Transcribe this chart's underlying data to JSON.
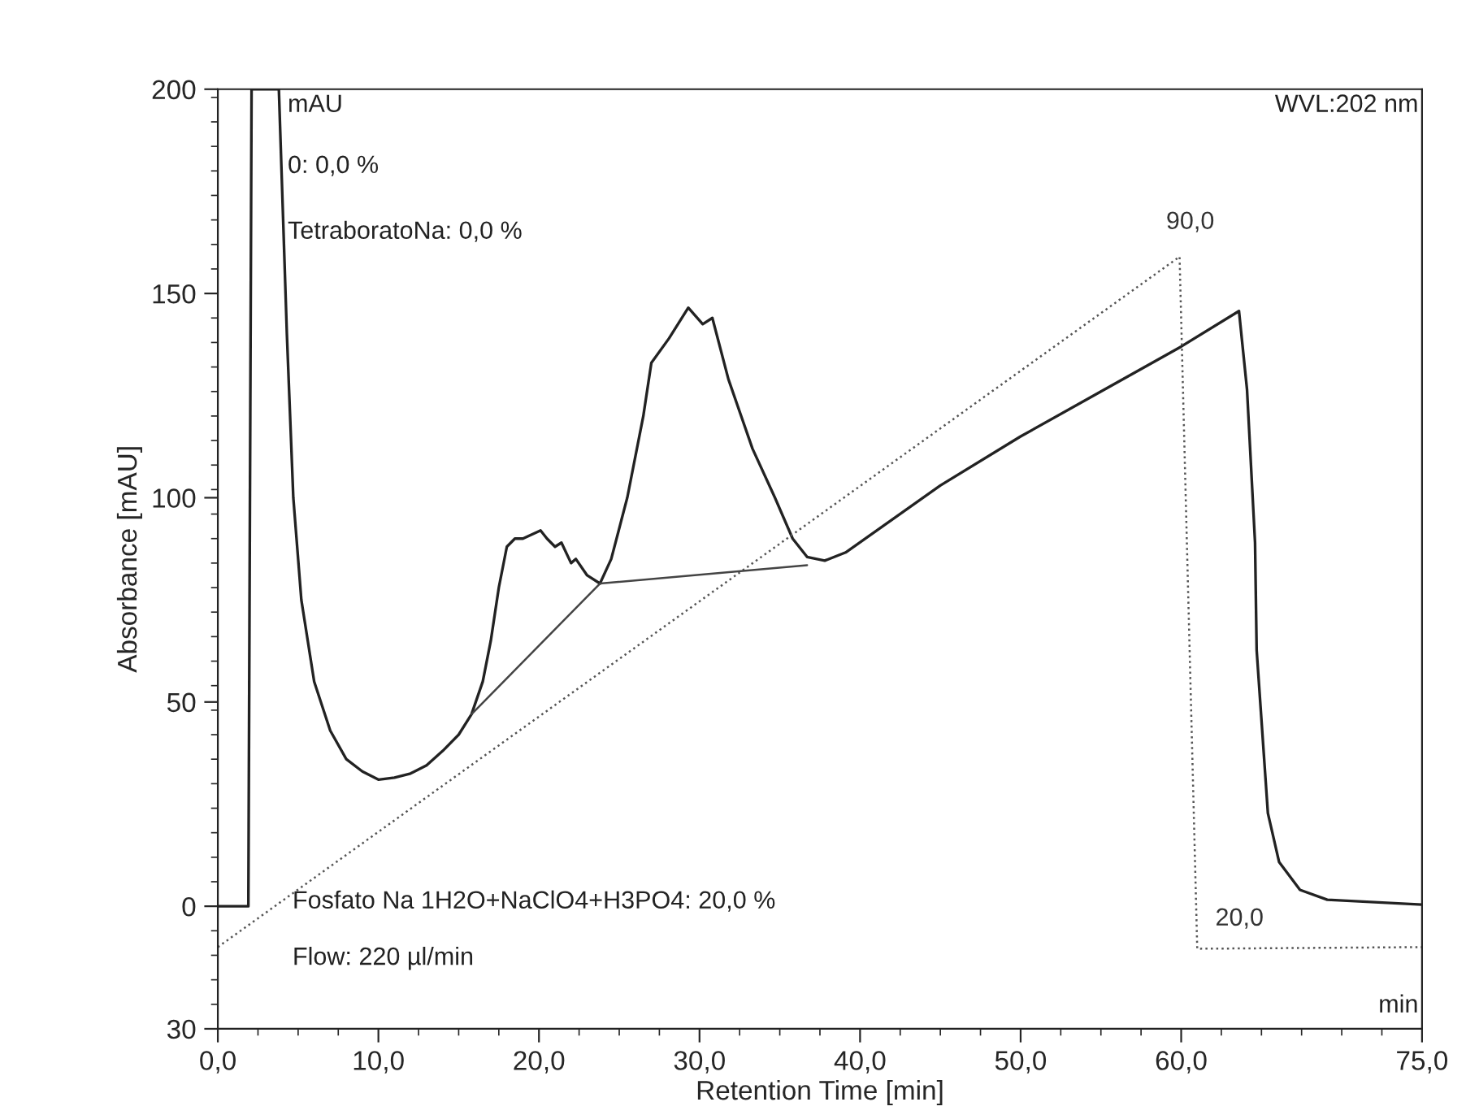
{
  "chart_data": {
    "type": "line",
    "xlabel": "Retention Time [min]",
    "ylabel": "Absorbance [mAU]",
    "xlim": [
      0,
      75
    ],
    "ylim": [
      -30,
      200
    ],
    "xticks": [
      {
        "value": 0,
        "label": "0,0"
      },
      {
        "value": 10,
        "label": "10,0"
      },
      {
        "value": 20,
        "label": "20,0"
      },
      {
        "value": 30,
        "label": "30,0"
      },
      {
        "value": 40,
        "label": "40,0"
      },
      {
        "value": 50,
        "label": "50,0"
      },
      {
        "value": 60,
        "label": "60,0"
      },
      {
        "value": 75,
        "label": "75,0"
      }
    ],
    "yticks": [
      {
        "value": -30,
        "label": "30"
      },
      0,
      50,
      100,
      150,
      200
    ],
    "grid": false,
    "marker": "none",
    "series": [
      {
        "color": "#222222",
        "line_style": "solid",
        "x": [
          0,
          1.9,
          2.1,
          3.8,
          4.3,
          4.7,
          5.2,
          6,
          7,
          8,
          9,
          10,
          11,
          12,
          13,
          14,
          15,
          15.8,
          16.5,
          17,
          17.5,
          18,
          18.5,
          19,
          20.1,
          20.5,
          21,
          21.4,
          22,
          22.3,
          23,
          23.8,
          24.5,
          25.5,
          26.5,
          27,
          28.1,
          29.3,
          30.2,
          30.8,
          31.8,
          33.3,
          34.7,
          35.8,
          36.7,
          37.8,
          39.1,
          45,
          50,
          55,
          60,
          63.6,
          64.1,
          64.6,
          64.7,
          65.4,
          66.1,
          67.4,
          69.1,
          75
        ],
        "values": [
          0,
          0,
          200,
          200,
          140,
          100,
          75,
          55,
          43,
          36,
          33,
          31,
          31.5,
          32.5,
          34.5,
          38,
          42,
          47,
          55,
          65,
          78,
          88,
          90,
          90,
          92,
          90,
          88,
          89,
          84,
          85,
          81,
          79,
          85,
          100,
          120,
          133,
          139,
          146.5,
          142.5,
          144,
          129,
          112,
          100,
          90,
          85.5,
          84.6,
          86.6,
          103,
          115,
          126,
          137,
          145.7,
          126.5,
          89,
          62.7,
          22.8,
          10.8,
          4,
          1.6,
          0.4
        ]
      },
      {
        "color": "#555555",
        "line_style": "dotted",
        "x": [
          0,
          59.9,
          61,
          75
        ],
        "values": [
          -10,
          159,
          -10.4,
          -10
        ]
      },
      {
        "color": "#444444",
        "line_style": "solid",
        "x": [
          15.8,
          23.8,
          36.7
        ],
        "values": [
          47,
          79,
          83.5
        ]
      }
    ],
    "annotations": [
      "mAU",
      "0: 0,0 %",
      "TetraboratoNa: 0,0 %",
      "WVL:202 nm",
      "Fosfato Na 1H2O+NaClO4+H3PO4: 20,0 %",
      "Flow: 220 µl/min",
      "min",
      {
        "text": "90,0",
        "x": 59.9,
        "y": 159
      },
      {
        "text": "20,0",
        "x": 61,
        "y": -10.4
      }
    ]
  }
}
